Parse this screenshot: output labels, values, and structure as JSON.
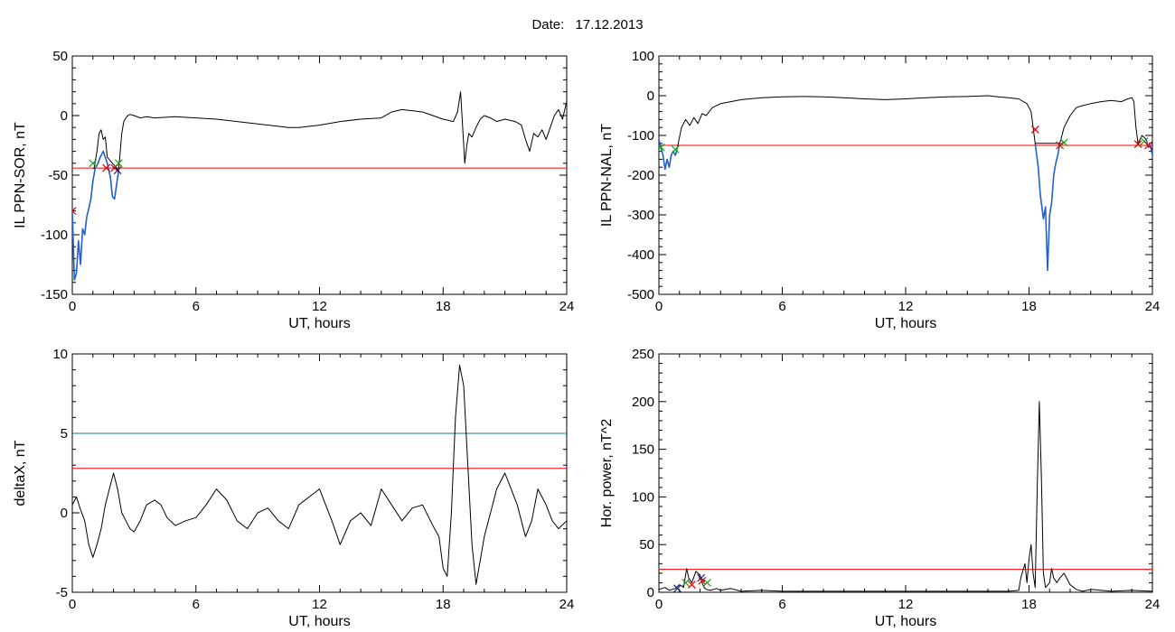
{
  "header": {
    "date_label": "Date:",
    "date_value": "17.12.2013"
  },
  "colors": {
    "trace": "#000000",
    "threshold": "#e00000",
    "blue": "#1f5fd0",
    "teal": "#0a7ea0",
    "green": "#1ca01c",
    "marker_red": "#e00000",
    "marker_navy": "#202080"
  },
  "chart_data": [
    {
      "type": "line",
      "ylabel": "IL PPN-SOR, nT",
      "xlabel": "UT, hours",
      "xlim": [
        0,
        24
      ],
      "ylim": [
        -150,
        50
      ],
      "xticks": [
        0,
        6,
        12,
        18,
        24
      ],
      "yticks": [
        -150,
        -100,
        -50,
        0,
        50
      ],
      "grid": false,
      "thresholds": [
        {
          "value": -44,
          "color": "red"
        }
      ],
      "series": [
        {
          "color": "blue",
          "x": [
            0,
            0.1,
            0.2,
            0.3,
            0.4,
            0.5,
            0.6,
            0.7,
            0.8,
            0.9,
            1.0,
            1.1,
            1.25,
            1.35,
            1.5,
            1.7,
            1.85,
            1.95,
            2.05,
            2.15,
            2.25
          ],
          "y": [
            -80,
            -138,
            -132,
            -105,
            -125,
            -95,
            -100,
            -85,
            -78,
            -70,
            -55,
            -45,
            -40,
            -35,
            -30,
            -40,
            -52,
            -68,
            -70,
            -58,
            -46
          ]
        },
        {
          "color": "black",
          "x": [
            1.05,
            1.2,
            1.3,
            1.4,
            1.5,
            1.6,
            1.7,
            2.25,
            2.4,
            2.5,
            2.6,
            2.7,
            2.8,
            3.0,
            3.3,
            3.6,
            4.0,
            5.0,
            6.0,
            7.0,
            8.0,
            9.0,
            10.0,
            10.5,
            11.0,
            12.0,
            13.0,
            14.0,
            15.0,
            15.5,
            16.0,
            17.0,
            17.5,
            18.0,
            18.5,
            18.7,
            18.85,
            18.95,
            19.05,
            19.15,
            19.25,
            19.4,
            19.6,
            19.8,
            20.0,
            20.3,
            20.6,
            21.0,
            21.5,
            21.8,
            22.0,
            22.2,
            22.4,
            22.6,
            22.8,
            23.0,
            23.2,
            23.4,
            23.6,
            23.8,
            24.0
          ],
          "y": [
            -45,
            -30,
            -15,
            -12,
            -20,
            -18,
            -35,
            -46,
            -15,
            -5,
            -2,
            0,
            1,
            0,
            -2,
            -1,
            -2,
            -1,
            -2,
            -3,
            -5,
            -7,
            -9,
            -10,
            -10,
            -8,
            -5,
            -3,
            -2,
            3,
            5,
            3,
            0,
            -3,
            -5,
            3,
            20,
            -10,
            -40,
            -25,
            -15,
            -18,
            -10,
            -3,
            0,
            -2,
            -5,
            -3,
            -5,
            -8,
            -20,
            -30,
            -15,
            -18,
            -12,
            -20,
            -10,
            0,
            5,
            -3,
            12
          ]
        }
      ],
      "markers": [
        {
          "x": 0,
          "y": -80,
          "color": "marker_red"
        },
        {
          "x": 1.0,
          "y": -40,
          "color": "green"
        },
        {
          "x": 1.65,
          "y": -44,
          "color": "marker_red"
        },
        {
          "x": 2.05,
          "y": -44,
          "color": "marker_red"
        },
        {
          "x": 2.2,
          "y": -46,
          "color": "marker_navy"
        },
        {
          "x": 2.25,
          "y": -40,
          "color": "green"
        }
      ]
    },
    {
      "type": "line",
      "ylabel": "IL PPN-NAL, nT",
      "xlabel": "UT, hours",
      "xlim": [
        0,
        24
      ],
      "ylim": [
        -500,
        100
      ],
      "xticks": [
        0,
        6,
        12,
        18,
        24
      ],
      "yticks": [
        -500,
        -400,
        -300,
        -200,
        -100,
        0,
        100
      ],
      "grid": false,
      "thresholds": [
        {
          "value": -125,
          "color": "red"
        }
      ],
      "series": [
        {
          "color": "blue",
          "x": [
            0,
            0.1,
            0.2,
            0.3,
            0.4,
            0.5,
            0.6,
            0.7,
            0.8,
            0.9
          ],
          "y": [
            -110,
            -130,
            -150,
            -185,
            -160,
            -180,
            -150,
            -140,
            -150,
            -130
          ]
        },
        {
          "color": "blue",
          "x": [
            18.3,
            18.45,
            18.55,
            18.7,
            18.8,
            18.9,
            19.0,
            19.1,
            19.2,
            19.3,
            19.4,
            19.5
          ],
          "y": [
            -120,
            -180,
            -250,
            -310,
            -280,
            -440,
            -300,
            -270,
            -200,
            -170,
            -150,
            -120
          ]
        },
        {
          "color": "blue",
          "x": [
            23.7,
            23.8,
            23.9,
            24.0
          ],
          "y": [
            -110,
            -130,
            -125,
            -150
          ]
        },
        {
          "color": "black",
          "x": [
            0.9,
            1.1,
            1.3,
            1.5,
            1.7,
            1.9,
            2.1,
            2.3,
            2.6,
            3.0,
            3.5,
            4.0,
            5.0,
            6.0,
            7.0,
            8.0,
            9.0,
            10.0,
            11.0,
            12.0,
            13.0,
            14.0,
            15.0,
            16.0,
            16.5,
            17.0,
            17.5,
            17.9,
            18.1,
            18.3,
            19.5,
            19.7,
            20.0,
            20.3,
            20.6,
            21.0,
            21.5,
            22.0,
            22.5,
            22.8,
            23.0,
            23.1,
            23.2,
            23.3,
            23.5,
            23.7
          ],
          "y": [
            -130,
            -80,
            -60,
            -75,
            -55,
            -70,
            -45,
            -50,
            -30,
            -20,
            -15,
            -10,
            -5,
            -3,
            -2,
            -3,
            -5,
            -8,
            -10,
            -8,
            -5,
            -3,
            -2,
            0,
            -3,
            -5,
            -8,
            -20,
            -40,
            -120,
            -120,
            -80,
            -50,
            -30,
            -25,
            -20,
            -15,
            -12,
            -15,
            -8,
            -5,
            -15,
            -80,
            -120,
            -100,
            -110
          ]
        }
      ],
      "markers": [
        {
          "x": 0.1,
          "y": -130,
          "color": "green"
        },
        {
          "x": 0.8,
          "y": -135,
          "color": "green"
        },
        {
          "x": 18.3,
          "y": -85,
          "color": "marker_red"
        },
        {
          "x": 19.5,
          "y": -125,
          "color": "marker_red"
        },
        {
          "x": 19.7,
          "y": -118,
          "color": "green"
        },
        {
          "x": 23.3,
          "y": -122,
          "color": "marker_red"
        },
        {
          "x": 23.6,
          "y": -115,
          "color": "green"
        },
        {
          "x": 23.8,
          "y": -125,
          "color": "marker_red"
        }
      ]
    },
    {
      "type": "line",
      "ylabel": "deltaX, nT",
      "xlabel": "UT, hours",
      "xlim": [
        0,
        24
      ],
      "ylim": [
        -5,
        10
      ],
      "xticks": [
        0,
        6,
        12,
        18,
        24
      ],
      "yticks": [
        -5,
        0,
        5,
        10
      ],
      "grid": false,
      "thresholds": [
        {
          "value": 5,
          "color": "teal"
        },
        {
          "value": 2.8,
          "color": "red"
        }
      ],
      "series": [
        {
          "color": "black",
          "x": [
            0,
            0.2,
            0.4,
            0.6,
            0.8,
            1.0,
            1.2,
            1.4,
            1.6,
            1.8,
            2.0,
            2.2,
            2.4,
            2.6,
            2.8,
            3.0,
            3.3,
            3.6,
            4.0,
            4.3,
            4.6,
            5.0,
            5.5,
            6.0,
            6.5,
            7.0,
            7.5,
            8.0,
            8.5,
            9.0,
            9.5,
            10.0,
            10.5,
            11.0,
            11.5,
            12.0,
            12.3,
            12.6,
            13.0,
            13.5,
            14.0,
            14.5,
            15.0,
            15.5,
            16.0,
            16.5,
            17.0,
            17.5,
            17.8,
            18.0,
            18.2,
            18.4,
            18.6,
            18.8,
            19.0,
            19.2,
            19.4,
            19.6,
            19.8,
            20.0,
            20.3,
            20.6,
            21.0,
            21.3,
            21.6,
            22.0,
            22.3,
            22.6,
            23.0,
            23.3,
            23.6,
            24.0
          ],
          "y": [
            0.5,
            1.0,
            0.2,
            -0.5,
            -2.0,
            -2.8,
            -2.0,
            -1.0,
            0.5,
            1.5,
            2.5,
            1.5,
            0,
            -0.5,
            -1.0,
            -1.2,
            -0.5,
            0.5,
            0.8,
            0.5,
            -0.3,
            -0.8,
            -0.5,
            -0.3,
            0.5,
            1.5,
            0.8,
            -0.5,
            -1.0,
            0,
            0.3,
            -0.5,
            -1.0,
            0.5,
            1.0,
            1.5,
            0.5,
            -0.5,
            -2.0,
            -0.5,
            0,
            -0.8,
            1.5,
            0.5,
            -0.5,
            0.3,
            0.5,
            -0.8,
            -1.5,
            -3.5,
            -4.0,
            0,
            6.0,
            9.3,
            8.0,
            3.0,
            -2.0,
            -4.5,
            -3.0,
            -1.5,
            0,
            1.5,
            2.5,
            1.5,
            0.5,
            -1.5,
            -0.5,
            1.5,
            0.5,
            -0.5,
            -1.0,
            -0.5
          ]
        }
      ],
      "markers": []
    },
    {
      "type": "line",
      "ylabel": "Hor. power, nT^2",
      "xlabel": "UT, hours",
      "xlim": [
        0,
        24
      ],
      "ylim": [
        0,
        250
      ],
      "xticks": [
        0,
        6,
        12,
        18,
        24
      ],
      "yticks": [
        0,
        50,
        100,
        150,
        200,
        250
      ],
      "grid": false,
      "thresholds": [
        {
          "value": 24,
          "color": "red"
        }
      ],
      "series": [
        {
          "color": "black",
          "x": [
            0,
            0.3,
            0.5,
            0.8,
            1.0,
            1.2,
            1.35,
            1.45,
            1.6,
            1.8,
            2.0,
            2.1,
            2.2,
            2.3,
            2.5,
            2.8,
            3.0,
            3.5,
            4.0,
            5.0,
            6.0,
            8.0,
            10.0,
            12.0,
            14.0,
            16.0,
            17.0,
            17.5,
            17.6,
            17.8,
            17.9,
            18.0,
            18.1,
            18.2,
            18.3,
            18.4,
            18.5,
            18.6,
            18.7,
            18.8,
            19.0,
            19.1,
            19.2,
            19.35,
            19.5,
            19.7,
            20.0,
            20.3,
            20.6,
            21.0,
            22.0,
            23.0,
            24.0
          ],
          "y": [
            3,
            5,
            2,
            4,
            8,
            5,
            25,
            15,
            10,
            22,
            18,
            10,
            5,
            3,
            2,
            4,
            2,
            4,
            1,
            2,
            1,
            1,
            1,
            1,
            1,
            1,
            1,
            2,
            15,
            30,
            10,
            35,
            50,
            20,
            5,
            110,
            200,
            120,
            20,
            5,
            10,
            25,
            15,
            10,
            15,
            20,
            8,
            3,
            1,
            3,
            1,
            2,
            1
          ]
        }
      ],
      "markers": [
        {
          "x": 0.9,
          "y": 4,
          "color": "marker_navy"
        },
        {
          "x": 1.3,
          "y": 10,
          "color": "green"
        },
        {
          "x": 1.6,
          "y": 8,
          "color": "marker_red"
        },
        {
          "x": 2.05,
          "y": 15,
          "color": "marker_navy"
        },
        {
          "x": 2.1,
          "y": 12,
          "color": "marker_red"
        },
        {
          "x": 2.35,
          "y": 10,
          "color": "green"
        }
      ]
    }
  ]
}
